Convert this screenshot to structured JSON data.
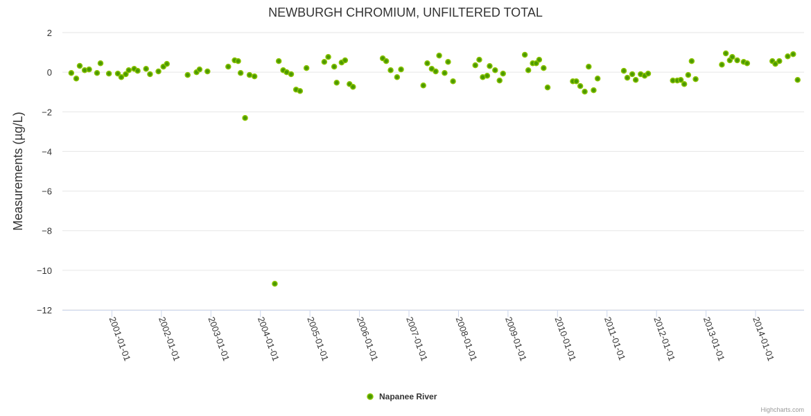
{
  "chart_data": {
    "type": "scatter",
    "title": "NEWBURGH CHROMIUM, UNFILTERED TOTAL",
    "xlabel": "",
    "ylabel": "Measurements (µg/L)",
    "ylim": [
      -12,
      2
    ],
    "yticks": [
      2,
      0,
      -2,
      -4,
      -6,
      -8,
      -10,
      -12
    ],
    "ytick_labels": [
      "2",
      "0",
      "−2",
      "−4",
      "−6",
      "−8",
      "−10",
      "−12"
    ],
    "xlim": [
      2000.0,
      2014.98
    ],
    "xticks": [
      2001,
      2002,
      2003,
      2004,
      2005,
      2006,
      2007,
      2008,
      2009,
      2010,
      2011,
      2012,
      2013,
      2014
    ],
    "xtick_labels": [
      "2001-01-01",
      "2002-01-01",
      "2003-01-01",
      "2004-01-01",
      "2005-01-01",
      "2006-01-01",
      "2007-01-01",
      "2008-01-01",
      "2009-01-01",
      "2010-01-01",
      "2011-01-01",
      "2012-01-01",
      "2013-01-01",
      "2014-01-01"
    ],
    "grid": true,
    "legend_position": "bottom-center",
    "credits": "Highcharts.com",
    "series": [
      {
        "name": "Napanee River",
        "color": "#4c9a00",
        "x_unit": "decimal year",
        "points": [
          [
            2000.18,
            -0.04
          ],
          [
            2000.28,
            -0.32
          ],
          [
            2000.35,
            0.32
          ],
          [
            2000.45,
            0.1
          ],
          [
            2000.54,
            0.14
          ],
          [
            2000.7,
            -0.04
          ],
          [
            2000.77,
            0.45
          ],
          [
            2000.94,
            -0.07
          ],
          [
            2001.12,
            -0.07
          ],
          [
            2001.19,
            -0.25
          ],
          [
            2001.28,
            -0.1
          ],
          [
            2001.34,
            0.1
          ],
          [
            2001.45,
            0.17
          ],
          [
            2001.52,
            0.07
          ],
          [
            2001.69,
            0.17
          ],
          [
            2001.77,
            -0.1
          ],
          [
            2001.94,
            0.04
          ],
          [
            2002.04,
            0.28
          ],
          [
            2002.11,
            0.42
          ],
          [
            2002.53,
            -0.14
          ],
          [
            2002.71,
            0.0
          ],
          [
            2002.77,
            0.14
          ],
          [
            2002.93,
            0.04
          ],
          [
            2003.35,
            0.28
          ],
          [
            2003.48,
            0.6
          ],
          [
            2003.55,
            0.56
          ],
          [
            2003.6,
            -0.04
          ],
          [
            2003.69,
            -2.31
          ],
          [
            2003.78,
            -0.14
          ],
          [
            2003.88,
            -0.21
          ],
          [
            2004.29,
            -10.68
          ],
          [
            2004.37,
            0.56
          ],
          [
            2004.46,
            0.1
          ],
          [
            2004.53,
            0.0
          ],
          [
            2004.62,
            -0.1
          ],
          [
            2004.72,
            -0.88
          ],
          [
            2004.8,
            -0.95
          ],
          [
            2004.93,
            0.21
          ],
          [
            2005.29,
            0.52
          ],
          [
            2005.37,
            0.77
          ],
          [
            2005.49,
            0.28
          ],
          [
            2005.54,
            -0.53
          ],
          [
            2005.64,
            0.49
          ],
          [
            2005.71,
            0.6
          ],
          [
            2005.8,
            -0.6
          ],
          [
            2005.87,
            -0.74
          ],
          [
            2006.47,
            0.7
          ],
          [
            2006.54,
            0.56
          ],
          [
            2006.63,
            0.1
          ],
          [
            2006.76,
            -0.25
          ],
          [
            2006.84,
            0.14
          ],
          [
            2007.29,
            -0.67
          ],
          [
            2007.37,
            0.45
          ],
          [
            2007.46,
            0.17
          ],
          [
            2007.54,
            0.04
          ],
          [
            2007.61,
            0.84
          ],
          [
            2007.72,
            -0.04
          ],
          [
            2007.79,
            0.52
          ],
          [
            2007.89,
            -0.46
          ],
          [
            2008.34,
            0.35
          ],
          [
            2008.42,
            0.63
          ],
          [
            2008.49,
            -0.25
          ],
          [
            2008.58,
            -0.18
          ],
          [
            2008.63,
            0.31
          ],
          [
            2008.74,
            0.1
          ],
          [
            2008.83,
            -0.42
          ],
          [
            2008.9,
            -0.07
          ],
          [
            2009.34,
            0.88
          ],
          [
            2009.41,
            0.1
          ],
          [
            2009.5,
            0.45
          ],
          [
            2009.57,
            0.45
          ],
          [
            2009.63,
            0.63
          ],
          [
            2009.72,
            0.21
          ],
          [
            2009.8,
            -0.77
          ],
          [
            2010.31,
            -0.46
          ],
          [
            2010.38,
            -0.46
          ],
          [
            2010.46,
            -0.7
          ],
          [
            2010.55,
            -0.98
          ],
          [
            2010.63,
            0.28
          ],
          [
            2010.73,
            -0.91
          ],
          [
            2010.81,
            -0.32
          ],
          [
            2011.34,
            0.07
          ],
          [
            2011.41,
            -0.28
          ],
          [
            2011.51,
            -0.1
          ],
          [
            2011.58,
            -0.39
          ],
          [
            2011.68,
            -0.1
          ],
          [
            2011.76,
            -0.18
          ],
          [
            2011.83,
            -0.07
          ],
          [
            2012.33,
            -0.42
          ],
          [
            2012.42,
            -0.42
          ],
          [
            2012.49,
            -0.39
          ],
          [
            2012.56,
            -0.6
          ],
          [
            2012.64,
            -0.14
          ],
          [
            2012.71,
            0.56
          ],
          [
            2012.79,
            -0.35
          ],
          [
            2013.32,
            0.38
          ],
          [
            2013.4,
            0.95
          ],
          [
            2013.48,
            0.6
          ],
          [
            2013.53,
            0.77
          ],
          [
            2013.63,
            0.6
          ],
          [
            2013.76,
            0.52
          ],
          [
            2013.83,
            0.45
          ],
          [
            2014.34,
            0.56
          ],
          [
            2014.4,
            0.42
          ],
          [
            2014.48,
            0.56
          ],
          [
            2014.65,
            0.8
          ],
          [
            2014.76,
            0.91
          ],
          [
            2014.85,
            -0.39
          ]
        ]
      }
    ]
  }
}
